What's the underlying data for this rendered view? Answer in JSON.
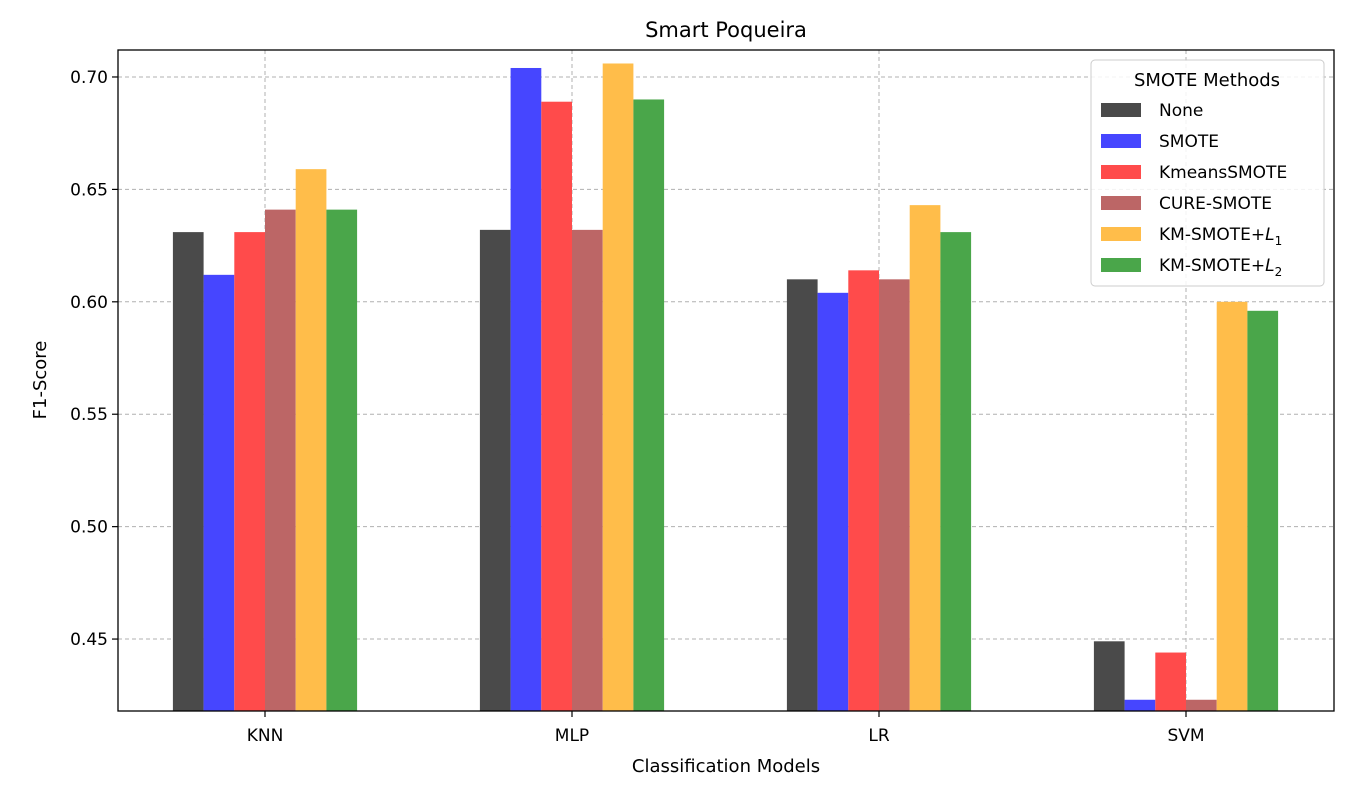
{
  "chart_data": {
    "type": "bar",
    "title": "Smart Poqueira",
    "xlabel": "Classification Models",
    "ylabel": "F1-Score",
    "categories": [
      "KNN",
      "MLP",
      "LR",
      "SVM"
    ],
    "ylim": [
      0.418,
      0.712
    ],
    "yticks": [
      "0.45",
      "0.50",
      "0.55",
      "0.60",
      "0.65",
      "0.70"
    ],
    "grid": true,
    "legend": {
      "title": "SMOTE Methods",
      "placement": "top-right"
    },
    "series": [
      {
        "name": "None",
        "sub": "",
        "color": "#4a4a4a",
        "values": [
          0.631,
          0.632,
          0.61,
          0.449
        ]
      },
      {
        "name": "SMOTE",
        "sub": "",
        "color": "#4646ff",
        "values": [
          0.612,
          0.704,
          0.604,
          0.423
        ]
      },
      {
        "name": "KmeansSMOTE",
        "sub": "",
        "color": "#ff4b4b",
        "values": [
          0.631,
          0.689,
          0.614,
          0.444
        ]
      },
      {
        "name": "CURE-SMOTE",
        "sub": "",
        "color": "#bc6666",
        "values": [
          0.641,
          0.632,
          0.61,
          0.423
        ]
      },
      {
        "name": "KM-SMOTE+L",
        "sub": "1",
        "color": "#ffbd4a",
        "values": [
          0.659,
          0.706,
          0.643,
          0.6
        ]
      },
      {
        "name": "KM-SMOTE+L",
        "sub": "2",
        "color": "#4aa64a",
        "values": [
          0.641,
          0.69,
          0.631,
          0.596
        ]
      }
    ]
  }
}
